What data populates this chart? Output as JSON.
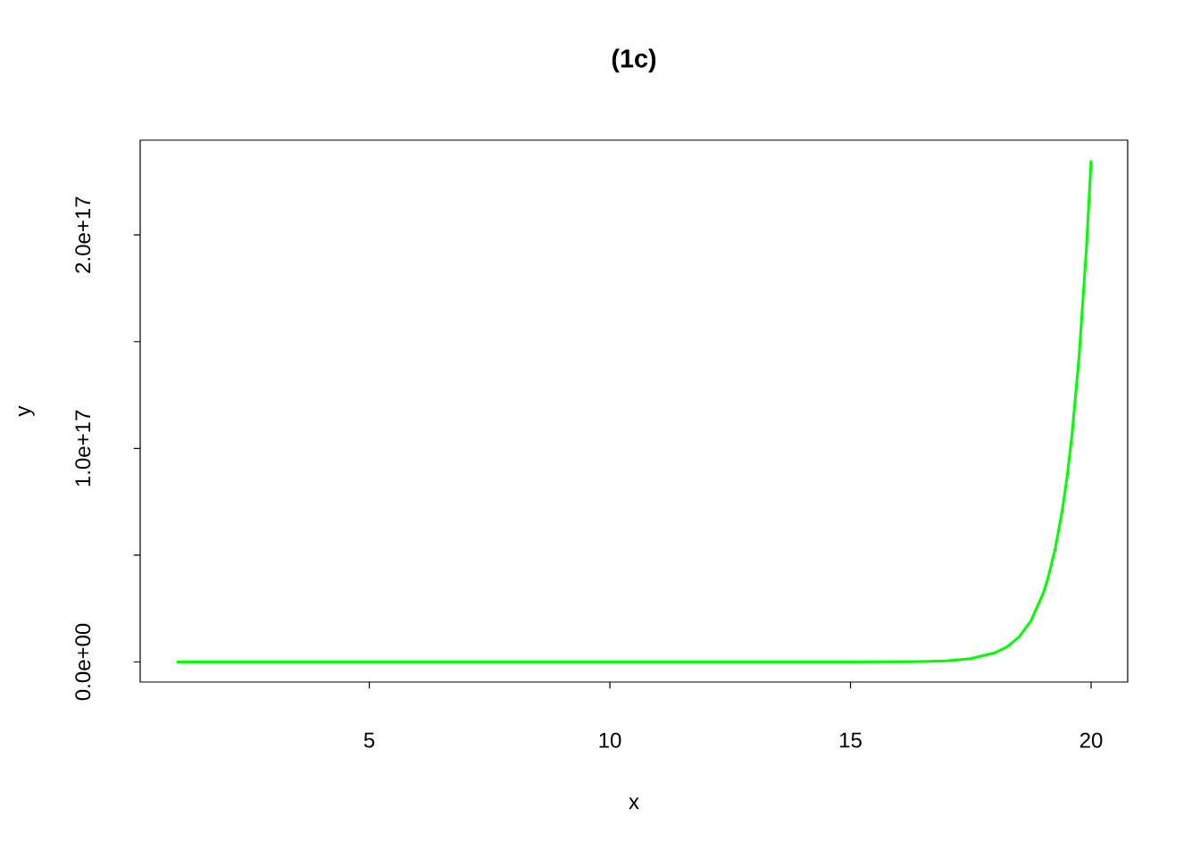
{
  "chart_data": {
    "type": "line",
    "title": "(1c)",
    "xlabel": "x",
    "ylabel": "y",
    "color": "#00ff00",
    "x": [
      1,
      2,
      3,
      4,
      5,
      6,
      7,
      8,
      9,
      10,
      11,
      12,
      13,
      14,
      15,
      16,
      16.5,
      17,
      17.5,
      18,
      18.25,
      18.5,
      18.75,
      19,
      19.1,
      19.25,
      19.4,
      19.5,
      19.6,
      19.75,
      19.9,
      20
    ],
    "values": [
      0,
      0,
      0,
      0,
      0,
      0,
      0,
      0,
      0,
      0,
      0,
      0,
      0,
      0,
      0,
      79000000000000.0,
      210000000000000.0,
      580000000000000.0,
      1600000000000000.0,
      4300000000000000.0,
      7100000000000000.0,
      1.17e+16,
      1.93e+16,
      3.19e+16,
      3.9e+16,
      5.26e+16,
      7.1e+16,
      8.66e+16,
      1.06e+17,
      1.43e+17,
      1.93e+17,
      2.35e+17
    ],
    "xlim": [
      0.24,
      20.76
    ],
    "ylim": [
      -9400000000000000.0,
      2.444e+17
    ],
    "xticks": [
      5,
      10,
      15,
      20
    ],
    "yticks": [
      {
        "value": 0,
        "label": "0.0e+00"
      },
      {
        "value": 5e+16,
        "label": null
      },
      {
        "value": 1e+17,
        "label": "1.0e+17"
      },
      {
        "value": 1.5e+17,
        "label": null
      },
      {
        "value": 2e+17,
        "label": "2.0e+17"
      }
    ]
  }
}
